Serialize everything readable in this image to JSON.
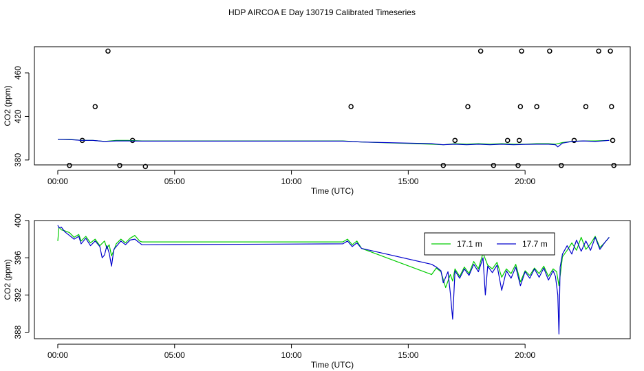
{
  "title": "HDP AIRCOA E  Day 130719  Calibrated Timeseries",
  "colors": {
    "green": "#00cc00",
    "blue": "#0000cc",
    "black": "#000000"
  },
  "chart_data": [
    {
      "type": "scatter",
      "xlabel": "Time (UTC)",
      "ylabel": "CO2 (ppm)",
      "xlim": [
        -1.0,
        24.5
      ],
      "ylim": [
        375.5,
        484
      ],
      "x_ticks": [
        0,
        5,
        10,
        15,
        20
      ],
      "x_tick_labels": [
        "00:00",
        "05:00",
        "10:00",
        "15:00",
        "20:00"
      ],
      "y_ticks": [
        380,
        420,
        460
      ],
      "y_tick_labels": [
        "380",
        "420",
        "460"
      ],
      "grid": false,
      "series": [
        {
          "color": "#000000",
          "style": "points",
          "x": [
            0.5,
            1.05,
            1.6,
            2.15,
            2.65,
            3.2,
            3.75,
            12.55,
            16.5,
            17.0,
            17.55,
            18.1,
            18.65,
            19.25,
            19.7,
            19.75,
            19.8,
            19.85,
            20.5,
            21.05,
            21.55,
            22.1,
            22.6,
            23.15,
            23.65,
            23.7,
            23.75,
            23.8
          ],
          "y": [
            375,
            398,
            429,
            480,
            375,
            398,
            374,
            429,
            375,
            398,
            429,
            480,
            375,
            398,
            375,
            398,
            429,
            480,
            429,
            480,
            375,
            398,
            429,
            480,
            480,
            429,
            398,
            375
          ]
        },
        {
          "color": "#00cc00",
          "style": "line",
          "x": [
            0,
            0.5,
            1,
            1.5,
            2,
            2.5,
            3,
            3.6,
            12.2,
            13,
            16,
            16.5,
            17,
            17.5,
            18,
            18.5,
            19,
            19.5,
            20,
            20.5,
            21,
            21.3,
            21.6,
            22,
            22.5,
            23,
            23.6
          ],
          "y": [
            399,
            399,
            398,
            398,
            397,
            398,
            398,
            397.5,
            397.5,
            396.5,
            394.5,
            394,
            395,
            394.5,
            395,
            394.5,
            395,
            394.5,
            394.5,
            395,
            395,
            394.5,
            396,
            397,
            397.5,
            397.5,
            398
          ]
        },
        {
          "color": "#0000cc",
          "style": "line",
          "x": [
            0,
            0.5,
            1,
            1.5,
            2,
            2.5,
            3,
            3.6,
            12.2,
            13,
            16,
            16.5,
            17,
            17.5,
            18,
            18.5,
            19,
            19.5,
            20,
            20.5,
            21,
            21.3,
            21.4,
            21.6,
            22,
            22.5,
            23,
            23.6
          ],
          "y": [
            399,
            398.8,
            398,
            398,
            397,
            397.5,
            397.5,
            397.3,
            397.3,
            396.5,
            395,
            394,
            394.5,
            394,
            394.5,
            394,
            394.5,
            394,
            394.3,
            394.5,
            394.5,
            394,
            392,
            395.5,
            397,
            397.5,
            397,
            398
          ]
        }
      ]
    },
    {
      "type": "line",
      "xlabel": "Time (UTC)",
      "ylabel": "CO2 (ppm)",
      "xlim": [
        -1.0,
        24.5
      ],
      "ylim": [
        387.3,
        400
      ],
      "x_ticks": [
        0,
        5,
        10,
        15,
        20
      ],
      "x_tick_labels": [
        "00:00",
        "05:00",
        "10:00",
        "15:00",
        "20:00"
      ],
      "y_ticks": [
        388,
        392,
        396,
        400
      ],
      "y_tick_labels": [
        "388",
        "392",
        "396",
        "400"
      ],
      "grid": false,
      "legend_position": "top-right",
      "series": [
        {
          "name": "17.1 m",
          "color": "#00cc00",
          "x": [
            0,
            0.05,
            0.15,
            0.3,
            0.5,
            0.7,
            0.9,
            1.0,
            1.2,
            1.4,
            1.6,
            1.8,
            2.0,
            2.1,
            2.2,
            2.3,
            2.4,
            2.5,
            2.7,
            2.9,
            3.1,
            3.3,
            3.5,
            3.6,
            12.2,
            12.4,
            12.6,
            12.8,
            13.0,
            16.0,
            16.2,
            16.4,
            16.6,
            16.8,
            16.9,
            17.0,
            17.2,
            17.4,
            17.6,
            17.8,
            18.0,
            18.2,
            18.4,
            18.6,
            18.8,
            19.0,
            19.2,
            19.4,
            19.6,
            19.8,
            20.0,
            20.2,
            20.4,
            20.6,
            20.8,
            21.0,
            21.2,
            21.35,
            21.45,
            21.6,
            21.8,
            22.0,
            22.2,
            22.4,
            22.6,
            22.8,
            23.0,
            23.2,
            23.4,
            23.6
          ],
          "y": [
            397.8,
            399.3,
            399.0,
            398.9,
            398.7,
            398.2,
            398.5,
            397.8,
            398.3,
            397.6,
            398.0,
            397.3,
            397.8,
            397.0,
            397.4,
            396.2,
            396.8,
            397.5,
            398.0,
            397.6,
            398.1,
            398.4,
            397.8,
            397.7,
            397.7,
            398.0,
            397.4,
            397.8,
            397.0,
            394.2,
            394.9,
            394.5,
            392.8,
            394.2,
            393.5,
            394.8,
            394.0,
            395.0,
            394.3,
            395.6,
            394.8,
            396.5,
            395.2,
            394.8,
            395.5,
            393.9,
            394.8,
            394.3,
            395.3,
            393.4,
            394.6,
            394.1,
            394.9,
            394.3,
            395.1,
            394.0,
            394.8,
            394.5,
            393.0,
            396.1,
            396.8,
            397.6,
            396.8,
            398.2,
            396.9,
            397.5,
            398.3,
            397.1,
            397.6,
            398.2
          ]
        },
        {
          "name": "17.7 m",
          "color": "#0000cc",
          "x": [
            0,
            0.05,
            0.15,
            0.3,
            0.5,
            0.7,
            0.9,
            1.0,
            1.2,
            1.4,
            1.6,
            1.8,
            1.9,
            2.0,
            2.1,
            2.2,
            2.3,
            2.4,
            2.5,
            2.7,
            2.9,
            3.1,
            3.3,
            3.5,
            3.6,
            12.2,
            12.4,
            12.6,
            12.8,
            13.0,
            16.0,
            16.2,
            16.4,
            16.5,
            16.7,
            16.8,
            16.9,
            17.0,
            17.2,
            17.4,
            17.6,
            17.8,
            18.0,
            18.2,
            18.3,
            18.4,
            18.6,
            18.8,
            19.0,
            19.2,
            19.4,
            19.6,
            19.8,
            20.0,
            20.2,
            20.4,
            20.6,
            20.8,
            21.0,
            21.2,
            21.3,
            21.4,
            21.45,
            21.5,
            21.6,
            21.8,
            22.0,
            22.2,
            22.4,
            22.6,
            22.8,
            23.0,
            23.2,
            23.4,
            23.6
          ],
          "y": [
            399.5,
            399.2,
            399.3,
            398.8,
            398.4,
            398.0,
            398.3,
            397.5,
            398.1,
            397.3,
            397.8,
            397.2,
            396.0,
            396.3,
            397.3,
            396.5,
            395.1,
            396.9,
            397.2,
            397.8,
            397.4,
            397.9,
            398.0,
            397.6,
            397.4,
            397.5,
            397.8,
            397.2,
            397.6,
            397.0,
            395.3,
            395.0,
            394.6,
            393.3,
            394.5,
            392.2,
            389.4,
            394.6,
            393.8,
            394.8,
            394.1,
            395.3,
            394.5,
            396.0,
            392.0,
            395.1,
            394.4,
            395.2,
            392.5,
            394.6,
            393.8,
            395.0,
            393.0,
            394.5,
            393.8,
            394.8,
            393.9,
            394.9,
            393.6,
            394.6,
            394.0,
            392.0,
            387.8,
            395.0,
            396.4,
            397.3,
            396.4,
            397.9,
            396.7,
            397.8,
            396.8,
            398.2,
            396.9,
            397.6,
            398.2
          ]
        }
      ]
    }
  ]
}
